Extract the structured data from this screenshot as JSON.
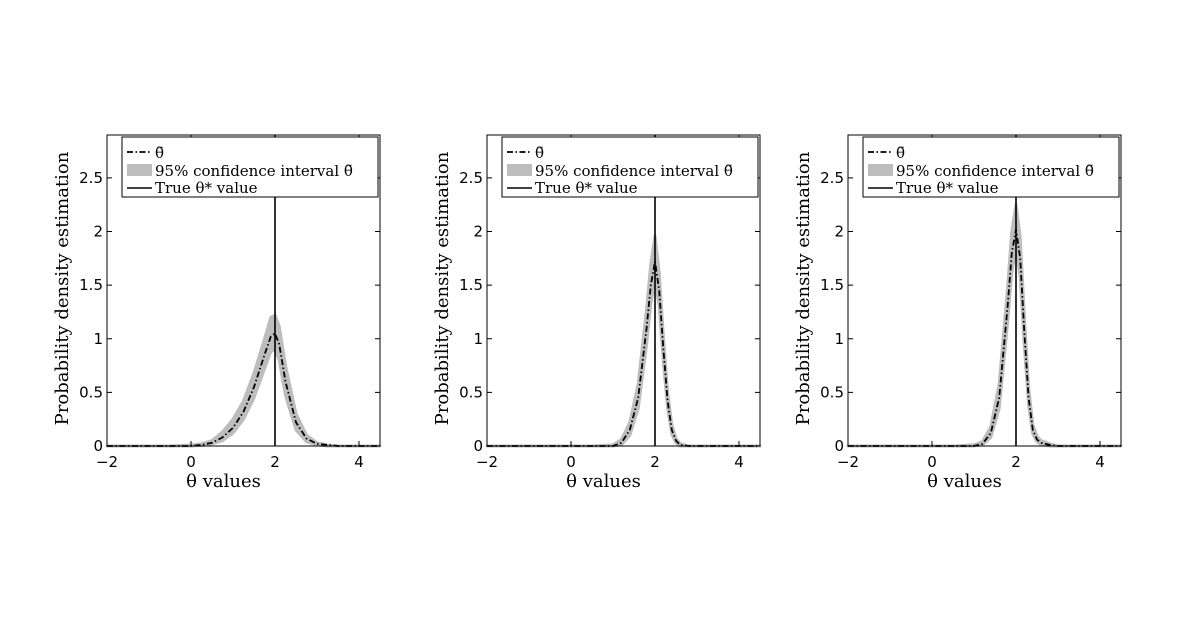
{
  "chart_data": [
    {
      "type": "line",
      "title": "",
      "xlabel": "θ values",
      "ylabel": "Probability density estimation",
      "xlim": [
        -2,
        4.5
      ],
      "ylim": [
        0,
        2.9
      ],
      "xticks": [
        -2,
        0,
        2,
        4
      ],
      "xtick_labels": [
        "−2",
        "0",
        "2",
        "4"
      ],
      "yticks": [
        0,
        0.5,
        1,
        1.5,
        2,
        2.5
      ],
      "ytick_labels": [
        "0",
        "0.5",
        "1",
        "1.5",
        "2",
        "2.5"
      ],
      "grid": false,
      "legend_position": "top",
      "legend": {
        "estimate": "θ̃",
        "band": "95% confidence interval θ̃",
        "truth": "True θ* value"
      },
      "true_value": 2,
      "x": [
        -2,
        -1,
        -0.5,
        0,
        0.25,
        0.5,
        0.75,
        1,
        1.25,
        1.5,
        1.75,
        1.9,
        2,
        2.1,
        2.25,
        2.5,
        2.75,
        3,
        3.25,
        3.5,
        4,
        4.5
      ],
      "series": [
        {
          "name": "θ̃",
          "values": [
            0,
            0,
            0,
            0,
            0.01,
            0.03,
            0.08,
            0.17,
            0.32,
            0.55,
            0.85,
            1.02,
            1.05,
            0.95,
            0.6,
            0.22,
            0.07,
            0.02,
            0.01,
            0,
            0,
            0
          ]
        }
      ],
      "band": {
        "name": "95% confidence interval θ̃",
        "lower": [
          0,
          0,
          0,
          0,
          0.005,
          0.02,
          0.05,
          0.12,
          0.25,
          0.45,
          0.72,
          0.88,
          0.9,
          0.8,
          0.47,
          0.15,
          0.04,
          0.01,
          0,
          0,
          0,
          0
        ],
        "upper": [
          0,
          0,
          0,
          0.01,
          0.02,
          0.05,
          0.13,
          0.25,
          0.42,
          0.68,
          1.0,
          1.2,
          1.22,
          1.12,
          0.75,
          0.3,
          0.1,
          0.03,
          0.01,
          0,
          0,
          0
        ]
      }
    },
    {
      "type": "line",
      "title": "",
      "xlabel": "θ values",
      "ylabel": "Probability density estimation",
      "xlim": [
        -2,
        4.5
      ],
      "ylim": [
        0,
        2.9
      ],
      "xticks": [
        -2,
        0,
        2,
        4
      ],
      "xtick_labels": [
        "−2",
        "0",
        "2",
        "4"
      ],
      "yticks": [
        0,
        0.5,
        1,
        1.5,
        2,
        2.5
      ],
      "ytick_labels": [
        "0",
        "0.5",
        "1",
        "1.5",
        "2",
        "2.5"
      ],
      "grid": false,
      "legend_position": "top",
      "legend": {
        "estimate": "θ̃",
        "band": "95% confidence interval θ̃",
        "truth": "True θ* value"
      },
      "true_value": 2,
      "x": [
        -2,
        -1,
        0,
        0.5,
        1,
        1.2,
        1.4,
        1.6,
        1.8,
        1.9,
        2,
        2.1,
        2.2,
        2.3,
        2.4,
        2.5,
        2.6,
        2.8,
        3,
        4,
        4.5
      ],
      "series": [
        {
          "name": "θ̃",
          "values": [
            0,
            0,
            0,
            0,
            0,
            0.03,
            0.15,
            0.45,
            1.1,
            1.5,
            1.72,
            1.45,
            0.9,
            0.42,
            0.15,
            0.05,
            0.01,
            0,
            0,
            0,
            0
          ]
        }
      ],
      "band": {
        "name": "95% confidence interval θ̃",
        "lower": [
          0,
          0,
          0,
          0,
          0,
          0.01,
          0.1,
          0.35,
          0.95,
          1.33,
          1.55,
          1.3,
          0.78,
          0.35,
          0.11,
          0.03,
          0,
          0,
          0,
          0,
          0
        ],
        "upper": [
          0,
          0,
          0,
          0,
          0.01,
          0.06,
          0.22,
          0.58,
          1.28,
          1.7,
          1.96,
          1.62,
          1.02,
          0.5,
          0.2,
          0.07,
          0.02,
          0,
          0,
          0,
          0
        ]
      }
    },
    {
      "type": "line",
      "title": "",
      "xlabel": "θ values",
      "ylabel": "Probability density estimation",
      "xlim": [
        -2,
        4.5
      ],
      "ylim": [
        0,
        2.9
      ],
      "xticks": [
        -2,
        0,
        2,
        4
      ],
      "xtick_labels": [
        "−2",
        "0",
        "2",
        "4"
      ],
      "yticks": [
        0,
        0.5,
        1,
        1.5,
        2,
        2.5
      ],
      "ytick_labels": [
        "0",
        "0.5",
        "1",
        "1.5",
        "2",
        "2.5"
      ],
      "grid": false,
      "legend_position": "top",
      "legend": {
        "estimate": "θ̃",
        "band": "95% confidence interval θ̃",
        "truth": "True θ* value"
      },
      "true_value": 2,
      "x": [
        -2,
        -1,
        0,
        0.5,
        1,
        1.2,
        1.4,
        1.6,
        1.8,
        1.9,
        2,
        2.1,
        2.2,
        2.3,
        2.4,
        2.5,
        2.6,
        2.8,
        3,
        4,
        4.5
      ],
      "series": [
        {
          "name": "θ̃",
          "values": [
            0,
            0,
            0,
            0,
            0,
            0.02,
            0.12,
            0.45,
            1.3,
            1.8,
            2.02,
            1.75,
            1.05,
            0.45,
            0.15,
            0.06,
            0.03,
            0.01,
            0,
            0,
            0
          ]
        }
      ],
      "band": {
        "name": "95% confidence interval θ̃",
        "lower": [
          0,
          0,
          0,
          0,
          0,
          0.01,
          0.08,
          0.35,
          1.15,
          1.62,
          1.85,
          1.58,
          0.92,
          0.38,
          0.11,
          0.04,
          0.01,
          0,
          0,
          0,
          0
        ],
        "upper": [
          0,
          0,
          0,
          0,
          0.01,
          0.04,
          0.18,
          0.58,
          1.48,
          2.0,
          2.25,
          1.95,
          1.2,
          0.55,
          0.2,
          0.09,
          0.05,
          0.02,
          0,
          0,
          0
        ]
      }
    }
  ]
}
